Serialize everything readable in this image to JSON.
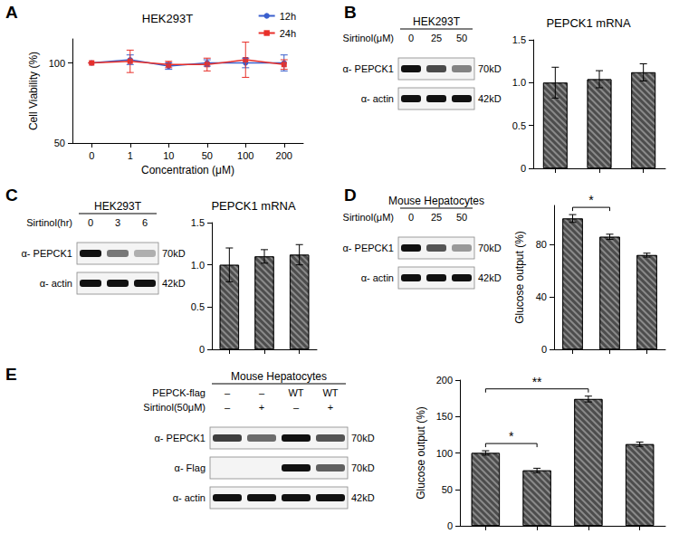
{
  "panel_letters": [
    "A",
    "B",
    "C",
    "D",
    "E"
  ],
  "chart_data": [
    {
      "type": "line",
      "title": "HEK293T",
      "x_label": "Concentration (μM)",
      "y_label": "Cell Viability (%)",
      "categories": [
        "0",
        "1",
        "10",
        "50",
        "100",
        "200"
      ],
      "series": [
        {
          "name": "12h",
          "color": "#3a5fcd",
          "marker": "circle",
          "values": [
            100,
            102,
            98,
            100,
            100,
            100
          ],
          "errors": [
            0,
            3,
            2,
            2,
            3,
            5
          ]
        },
        {
          "name": "24h",
          "color": "#e8302a",
          "marker": "square",
          "values": [
            100,
            101,
            99,
            99,
            102,
            99
          ],
          "errors": [
            0,
            7,
            2,
            4,
            11,
            3
          ]
        }
      ],
      "ylim": [
        50,
        115
      ],
      "yticks": [
        50,
        100
      ],
      "grid": false,
      "legend": "upper right"
    },
    {
      "type": "bar",
      "title": "PEPCK1 mRNA",
      "categories": [
        null,
        null,
        null
      ],
      "values": [
        1.0,
        1.04,
        1.12
      ],
      "errors": [
        0.18,
        0.1,
        0.1
      ],
      "color": "#4d4d4d",
      "ylim": [
        0,
        1.5
      ],
      "yticks": [
        0,
        0.5,
        {
          "value": 1,
          "label": "1.0"
        },
        1.5
      ],
      "grid": false
    },
    {
      "type": "bar",
      "title": "PEPCK1 mRNA",
      "categories": [
        null,
        null,
        null
      ],
      "values": [
        1.0,
        1.1,
        1.12
      ],
      "errors": [
        0.2,
        0.08,
        0.12
      ],
      "color": "#4d4d4d",
      "ylim": [
        0,
        1.5
      ],
      "yticks": [
        0,
        0.5,
        {
          "value": 1,
          "label": "1.0"
        },
        1.5
      ],
      "grid": false
    },
    {
      "type": "bar",
      "y_label": "Glucose output (%)",
      "categories": [
        null,
        null,
        null
      ],
      "values": [
        100,
        86,
        72
      ],
      "errors": [
        3,
        2,
        1.5
      ],
      "color": "#4d4d4d",
      "ylim": [
        0,
        110
      ],
      "yticks": [
        0,
        40,
        80
      ],
      "grid": false,
      "annotations": [
        {
          "text": "*",
          "between": [
            0,
            1
          ]
        }
      ]
    },
    {
      "type": "bar",
      "y_label": "Glucose output (%)",
      "categories": [
        null,
        null,
        null,
        null
      ],
      "values": [
        100,
        76,
        174,
        112
      ],
      "errors": [
        3,
        3,
        4,
        3
      ],
      "color": "#4d4d4d",
      "ylim": [
        0,
        200
      ],
      "yticks": [
        0,
        50,
        100,
        150,
        200
      ],
      "grid": false,
      "annotations": [
        {
          "text": "*",
          "between": [
            0,
            1
          ]
        },
        {
          "text": "**",
          "between": [
            0,
            2
          ]
        }
      ]
    }
  ],
  "blots": [
    {
      "header": "HEK293T",
      "conditions": [
        {
          "label": "Sirtinol(μM)",
          "lanes": [
            "0",
            "25",
            "50"
          ]
        }
      ],
      "rows": [
        {
          "label": "α- PEPCK1",
          "size": "70kD",
          "band_intensity": [
            1,
            0.75,
            0.5
          ]
        },
        {
          "label": "α- actin",
          "size": "42kD",
          "band_intensity": [
            1,
            1,
            1
          ]
        }
      ]
    },
    {
      "header": "HEK293T",
      "conditions": [
        {
          "label": "Sirtinol(hr)",
          "lanes": [
            "0",
            "3",
            "6"
          ]
        }
      ],
      "rows": [
        {
          "label": "α- PEPCK1",
          "size": "70kD",
          "band_intensity": [
            1,
            0.55,
            0.3
          ]
        },
        {
          "label": "α- actin",
          "size": "42kD",
          "band_intensity": [
            1,
            1,
            1
          ]
        }
      ]
    },
    {
      "header": "Mouse Hepatocytes",
      "conditions": [
        {
          "label": "Sirtinol(μM)",
          "lanes": [
            "0",
            "25",
            "50"
          ]
        }
      ],
      "rows": [
        {
          "label": "α- PEPCK1",
          "size": "70kD",
          "band_intensity": [
            1,
            0.7,
            0.4
          ]
        },
        {
          "label": "α- actin",
          "size": "42kD",
          "band_intensity": [
            1,
            1,
            1
          ]
        }
      ]
    },
    {
      "header": "Mouse Hepatocytes",
      "conditions": [
        {
          "label": "PEPCK-flag",
          "lanes": [
            "–",
            "–",
            "WT",
            "WT"
          ]
        },
        {
          "label": "Sirtinol(50μM)",
          "lanes": [
            "–",
            "+",
            "–",
            "+"
          ]
        }
      ],
      "rows": [
        {
          "label": "α- PEPCK1",
          "size": "70kD",
          "band_intensity": [
            0.8,
            0.6,
            1,
            0.7
          ]
        },
        {
          "label": "α- Flag",
          "size": "70kD",
          "band_intensity": [
            0,
            0,
            1,
            0.65
          ]
        },
        {
          "label": "α- actin",
          "size": "42kD",
          "band_intensity": [
            1,
            1,
            1,
            1
          ]
        }
      ]
    }
  ]
}
